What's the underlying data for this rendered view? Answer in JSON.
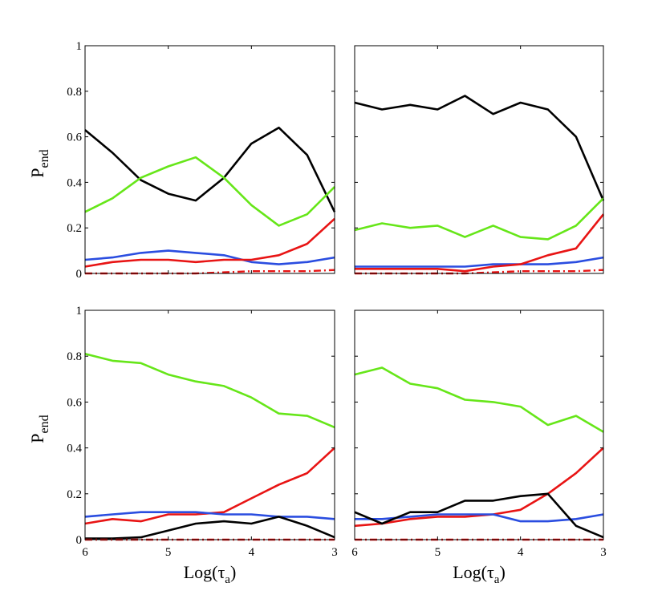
{
  "chart_data": [
    {
      "type": "line",
      "panel": "top-left",
      "x": [
        6,
        5.67,
        5.33,
        5,
        4.67,
        4.33,
        4,
        3.67,
        3.33,
        3
      ],
      "xlim": [
        6,
        3
      ],
      "ylim": [
        0,
        1
      ],
      "xticks": [
        "6",
        "5",
        "4",
        "3"
      ],
      "yticks": [
        "0",
        "0.2",
        "0.4",
        "0.6",
        "0.8",
        "1"
      ],
      "ylabel": "P",
      "ylabel_sub": "end",
      "xlabel": "",
      "series": [
        {
          "name": "black",
          "color": "#000000",
          "dash": "solid",
          "values": [
            0.63,
            0.53,
            0.41,
            0.35,
            0.32,
            0.42,
            0.57,
            0.64,
            0.52,
            0.27
          ]
        },
        {
          "name": "green",
          "color": "#66e619",
          "dash": "solid",
          "values": [
            0.27,
            0.33,
            0.42,
            0.47,
            0.51,
            0.42,
            0.3,
            0.21,
            0.26,
            0.38
          ]
        },
        {
          "name": "blue",
          "color": "#2a4de0",
          "dash": "solid",
          "values": [
            0.06,
            0.07,
            0.09,
            0.1,
            0.09,
            0.08,
            0.05,
            0.04,
            0.05,
            0.07
          ]
        },
        {
          "name": "red",
          "color": "#e81414",
          "dash": "solid",
          "values": [
            0.03,
            0.05,
            0.06,
            0.06,
            0.05,
            0.06,
            0.06,
            0.08,
            0.13,
            0.24
          ]
        },
        {
          "name": "red-dashdot",
          "color": "#e81414",
          "dash": "dashdot",
          "values": [
            0.0,
            0.0,
            0.0,
            0.0,
            0.0,
            0.005,
            0.01,
            0.01,
            0.01,
            0.015
          ]
        }
      ]
    },
    {
      "type": "line",
      "panel": "top-right",
      "x": [
        6,
        5.67,
        5.33,
        5,
        4.67,
        4.33,
        4,
        3.67,
        3.33,
        3
      ],
      "xlim": [
        6,
        3
      ],
      "ylim": [
        0,
        1
      ],
      "xticks": [
        "6",
        "5",
        "4",
        "3"
      ],
      "yticks": [
        "0",
        "0.2",
        "0.4",
        "0.6",
        "0.8",
        "1"
      ],
      "ylabel": "",
      "ylabel_sub": "",
      "xlabel": "",
      "series": [
        {
          "name": "black",
          "color": "#000000",
          "dash": "solid",
          "values": [
            0.75,
            0.72,
            0.74,
            0.72,
            0.78,
            0.7,
            0.75,
            0.72,
            0.6,
            0.32
          ]
        },
        {
          "name": "green",
          "color": "#66e619",
          "dash": "solid",
          "values": [
            0.19,
            0.22,
            0.2,
            0.21,
            0.16,
            0.21,
            0.16,
            0.15,
            0.21,
            0.33
          ]
        },
        {
          "name": "blue",
          "color": "#2a4de0",
          "dash": "solid",
          "values": [
            0.03,
            0.03,
            0.03,
            0.03,
            0.03,
            0.04,
            0.04,
            0.04,
            0.05,
            0.07
          ]
        },
        {
          "name": "red",
          "color": "#e81414",
          "dash": "solid",
          "values": [
            0.02,
            0.02,
            0.02,
            0.02,
            0.01,
            0.03,
            0.04,
            0.08,
            0.11,
            0.26
          ]
        },
        {
          "name": "red-dashdot",
          "color": "#e81414",
          "dash": "dashdot",
          "values": [
            0.0,
            0.0,
            0.0,
            0.0,
            0.0,
            0.005,
            0.01,
            0.01,
            0.01,
            0.015
          ]
        }
      ]
    },
    {
      "type": "line",
      "panel": "bottom-left",
      "x": [
        6,
        5.67,
        5.33,
        5,
        4.67,
        4.33,
        4,
        3.67,
        3.33,
        3
      ],
      "xlim": [
        6,
        3
      ],
      "ylim": [
        0,
        1
      ],
      "xticks": [
        "6",
        "5",
        "4",
        "3"
      ],
      "yticks": [
        "0",
        "0.2",
        "0.4",
        "0.6",
        "0.8",
        "1"
      ],
      "ylabel": "P",
      "ylabel_sub": "end",
      "xlabel": "Log(τ",
      "xlabel_sub": "a",
      "xlabel_close": ")",
      "series": [
        {
          "name": "green",
          "color": "#66e619",
          "dash": "solid",
          "values": [
            0.81,
            0.78,
            0.77,
            0.72,
            0.69,
            0.67,
            0.62,
            0.55,
            0.54,
            0.49
          ]
        },
        {
          "name": "red",
          "color": "#e81414",
          "dash": "solid",
          "values": [
            0.07,
            0.09,
            0.08,
            0.11,
            0.11,
            0.12,
            0.18,
            0.24,
            0.29,
            0.4
          ]
        },
        {
          "name": "blue",
          "color": "#2a4de0",
          "dash": "solid",
          "values": [
            0.1,
            0.11,
            0.12,
            0.12,
            0.12,
            0.11,
            0.11,
            0.1,
            0.1,
            0.09
          ]
        },
        {
          "name": "black",
          "color": "#000000",
          "dash": "solid",
          "values": [
            0.005,
            0.005,
            0.01,
            0.04,
            0.07,
            0.08,
            0.07,
            0.1,
            0.06,
            0.01
          ]
        },
        {
          "name": "red-dashdot",
          "color": "#e81414",
          "dash": "dashdot",
          "values": [
            0.0,
            0.0,
            0.0,
            0.0,
            0.0,
            0.0,
            0.0,
            0.0,
            0.0,
            0.0
          ]
        }
      ]
    },
    {
      "type": "line",
      "panel": "bottom-right",
      "x": [
        6,
        5.67,
        5.33,
        5,
        4.67,
        4.33,
        4,
        3.67,
        3.33,
        3
      ],
      "xlim": [
        6,
        3
      ],
      "ylim": [
        0,
        1
      ],
      "xticks": [
        "6",
        "5",
        "4",
        "3"
      ],
      "yticks": [
        "0",
        "0.2",
        "0.4",
        "0.6",
        "0.8",
        "1"
      ],
      "ylabel": "",
      "ylabel_sub": "",
      "xlabel": "Log(τ",
      "xlabel_sub": "a",
      "xlabel_close": ")",
      "series": [
        {
          "name": "green",
          "color": "#66e619",
          "dash": "solid",
          "values": [
            0.72,
            0.75,
            0.68,
            0.66,
            0.61,
            0.6,
            0.58,
            0.5,
            0.54,
            0.47
          ]
        },
        {
          "name": "red",
          "color": "#e81414",
          "dash": "solid",
          "values": [
            0.06,
            0.07,
            0.09,
            0.1,
            0.1,
            0.11,
            0.13,
            0.2,
            0.29,
            0.4
          ]
        },
        {
          "name": "blue",
          "color": "#2a4de0",
          "dash": "solid",
          "values": [
            0.09,
            0.09,
            0.1,
            0.11,
            0.11,
            0.11,
            0.08,
            0.08,
            0.09,
            0.11
          ]
        },
        {
          "name": "black",
          "color": "#000000",
          "dash": "solid",
          "values": [
            0.12,
            0.07,
            0.12,
            0.12,
            0.17,
            0.17,
            0.19,
            0.2,
            0.06,
            0.01
          ]
        },
        {
          "name": "red-dashdot",
          "color": "#e81414",
          "dash": "dashdot",
          "values": [
            0.0,
            0.0,
            0.0,
            0.0,
            0.0,
            0.0,
            0.0,
            0.0,
            0.0,
            0.0
          ]
        }
      ]
    }
  ]
}
